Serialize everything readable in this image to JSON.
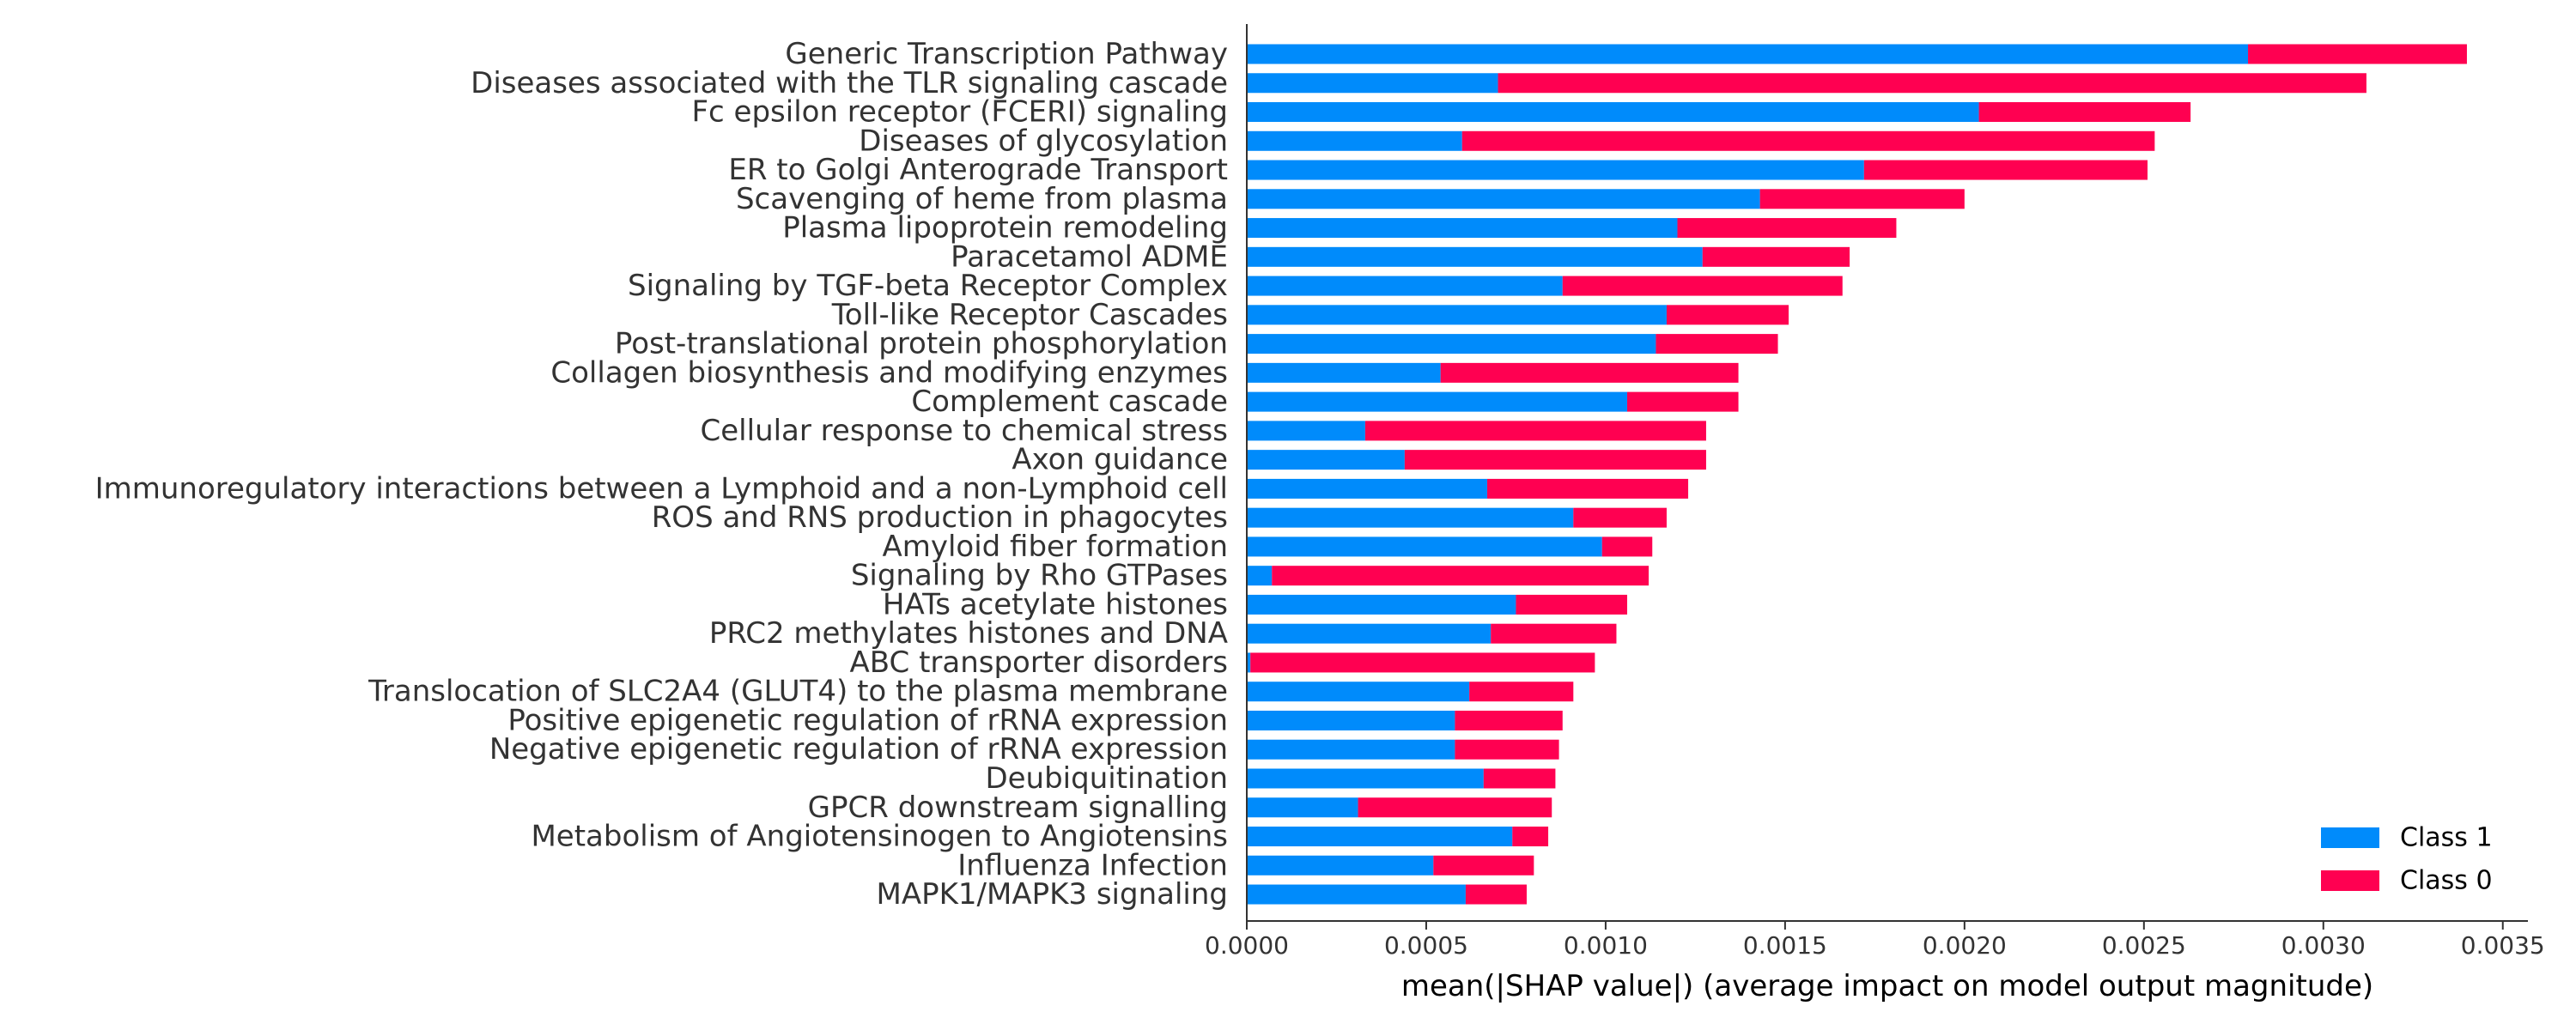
{
  "chart_data": {
    "type": "bar",
    "orientation": "horizontal",
    "stacked": true,
    "categories": [
      "Generic Transcription Pathway",
      "Diseases associated with the TLR signaling cascade",
      "Fc epsilon receptor (FCERI) signaling",
      "Diseases of glycosylation",
      "ER to Golgi Anterograde Transport",
      "Scavenging of heme from plasma",
      "Plasma lipoprotein remodeling",
      "Paracetamol ADME",
      "Signaling by TGF-beta Receptor Complex",
      "Toll-like Receptor Cascades",
      "Post-translational protein phosphorylation",
      "Collagen biosynthesis and modifying enzymes",
      "Complement cascade",
      "Cellular response to chemical stress",
      "Axon guidance",
      "Immunoregulatory interactions between a Lymphoid and a non-Lymphoid cell",
      "ROS and RNS production in phagocytes",
      "Amyloid fiber formation",
      "Signaling by Rho GTPases",
      "HATs acetylate histones",
      "PRC2 methylates histones and DNA",
      "ABC transporter disorders",
      "Translocation of SLC2A4 (GLUT4) to the plasma membrane",
      "Positive epigenetic regulation of rRNA expression",
      "Negative epigenetic regulation of rRNA expression",
      "Deubiquitination",
      "GPCR downstream signalling",
      "Metabolism of Angiotensinogen to Angiotensins",
      "Influenza Infection",
      "MAPK1/MAPK3 signaling"
    ],
    "series": [
      {
        "name": "Class 1",
        "color": "#008bfb",
        "values": [
          0.00279,
          0.0007,
          0.00204,
          0.0006,
          0.00172,
          0.00143,
          0.0012,
          0.00127,
          0.00088,
          0.00117,
          0.00114,
          0.00054,
          0.00106,
          0.00033,
          0.00044,
          0.00067,
          0.00091,
          0.00099,
          7e-05,
          0.00075,
          0.00068,
          1e-05,
          0.00062,
          0.00058,
          0.00058,
          0.00066,
          0.00031,
          0.00074,
          0.00052,
          0.00061
        ]
      },
      {
        "name": "Class 0",
        "color": "#ff0051",
        "values": [
          0.00061,
          0.00242,
          0.00059,
          0.00193,
          0.00079,
          0.00057,
          0.00061,
          0.00041,
          0.00078,
          0.00034,
          0.00034,
          0.00083,
          0.00031,
          0.00095,
          0.00084,
          0.00056,
          0.00026,
          0.00014,
          0.00105,
          0.00031,
          0.00035,
          0.00096,
          0.00029,
          0.0003,
          0.00029,
          0.0002,
          0.00054,
          0.0001,
          0.00028,
          0.00017
        ]
      }
    ],
    "xlabel": "mean(|SHAP value|) (average impact on model output magnitude)",
    "ylabel": "",
    "xlim": [
      0,
      0.00357
    ],
    "xticks": [
      0.0,
      0.0005,
      0.001,
      0.0015,
      0.002,
      0.0025,
      0.003,
      0.0035
    ],
    "xtick_labels": [
      "0.0000",
      "0.0005",
      "0.0010",
      "0.0015",
      "0.0020",
      "0.0025",
      "0.0030",
      "0.0035"
    ],
    "legend": [
      "Class 1",
      "Class 0"
    ],
    "legend_position": "lower-right",
    "grid": false
  }
}
